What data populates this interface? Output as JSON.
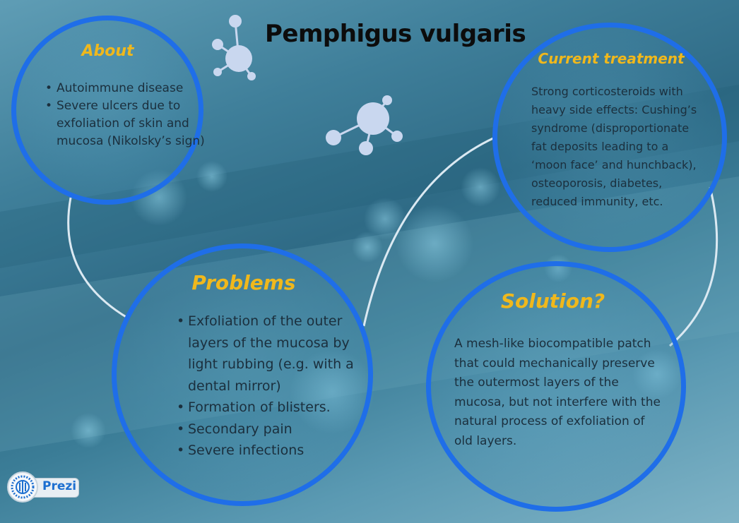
{
  "title": "Pemphigus vulgaris",
  "about": {
    "heading": "About",
    "points": [
      "Autoimmune disease",
      "Severe ulcers due to exfoliation of skin and mucosa (Nikolsky’s sign)"
    ]
  },
  "treatment": {
    "heading": "Current treatment",
    "text": "Strong corticosteroids with heavy side effects: Cushing’s syndrome (disproportionate fat deposits leading to a ‘moon face’ and hunchback), osteoporosis, diabetes, reduced immunity, etc."
  },
  "problems": {
    "heading": "Problems",
    "points": [
      "Exfoliation of the outer layers of the mucosa by light rubbing (e.g. with a dental mirror)",
      "Formation of blisters.",
      "Secondary pain",
      "Severe infections"
    ]
  },
  "solution": {
    "heading": "Solution?",
    "text": "A mesh-like biocompatible patch that could mechanically preserve the outermost layers of the mucosa, but not interfere with the natural process of exfoliation of old layers."
  },
  "logo": {
    "label": "Prezi"
  },
  "colors": {
    "ring": "#1f6ee8",
    "heading": "#f0b81c",
    "body_text": "#1b2f3d",
    "connector": "#dbe9f2",
    "molecule": "#c9d7ef"
  },
  "icons": [
    "molecule-icon",
    "prezi-logo-icon"
  ]
}
